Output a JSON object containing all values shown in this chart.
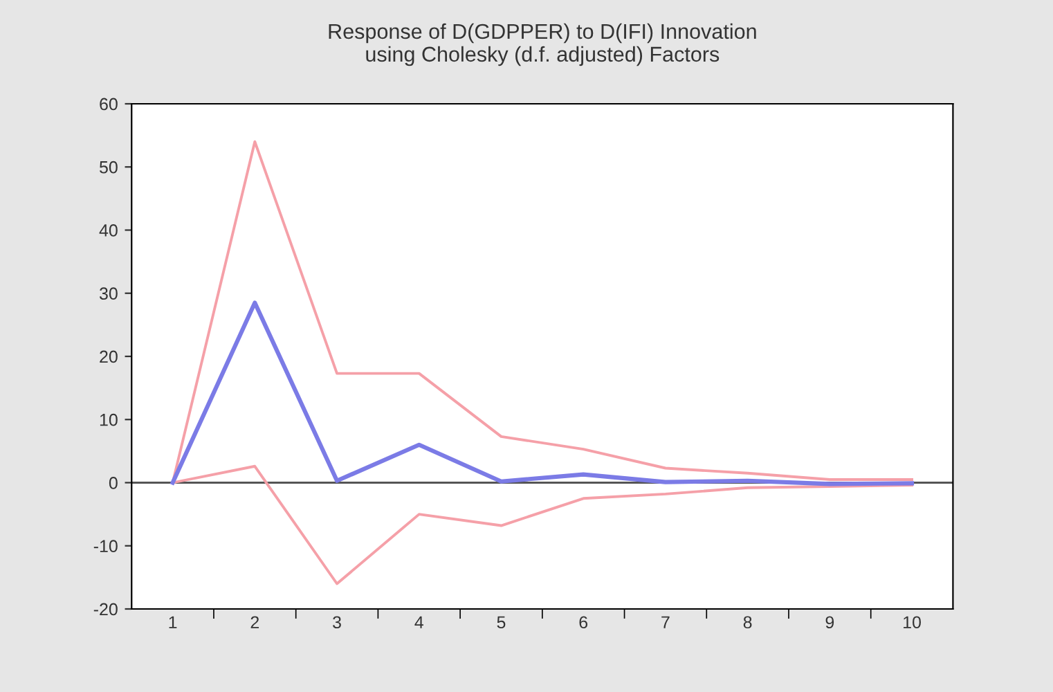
{
  "chart_data": {
    "type": "line",
    "title": "Response of D(GDPPER) to D(IFI) Innovation\nusing Cholesky (d.f. adjusted) Factors",
    "categories": [
      "1",
      "2",
      "3",
      "4",
      "5",
      "6",
      "7",
      "8",
      "9",
      "10"
    ],
    "series": [
      {
        "color": "#7b7be6",
        "values": [
          0,
          28.5,
          0.3,
          6,
          0.2,
          1.3,
          0.1,
          0.3,
          -0.2,
          -0.1
        ]
      },
      {
        "color": "#f5a0a8",
        "values": [
          0,
          54,
          17.3,
          17.3,
          7.3,
          5.3,
          2.3,
          1.5,
          0.5,
          0.5
        ]
      },
      {
        "color": "#f5a0a8",
        "values": [
          0,
          2.6,
          -16,
          -5,
          -6.8,
          -2.5,
          -1.8,
          -0.8,
          -0.6,
          -0.4
        ]
      }
    ],
    "ylim": [
      -20,
      60
    ],
    "yticks": [
      -20,
      -10,
      0,
      10,
      20,
      30,
      40,
      50,
      60
    ],
    "ref_lines": [
      {
        "axis": "y",
        "value": 0,
        "color": "#555555"
      }
    ],
    "grid": false,
    "legend": false
  }
}
